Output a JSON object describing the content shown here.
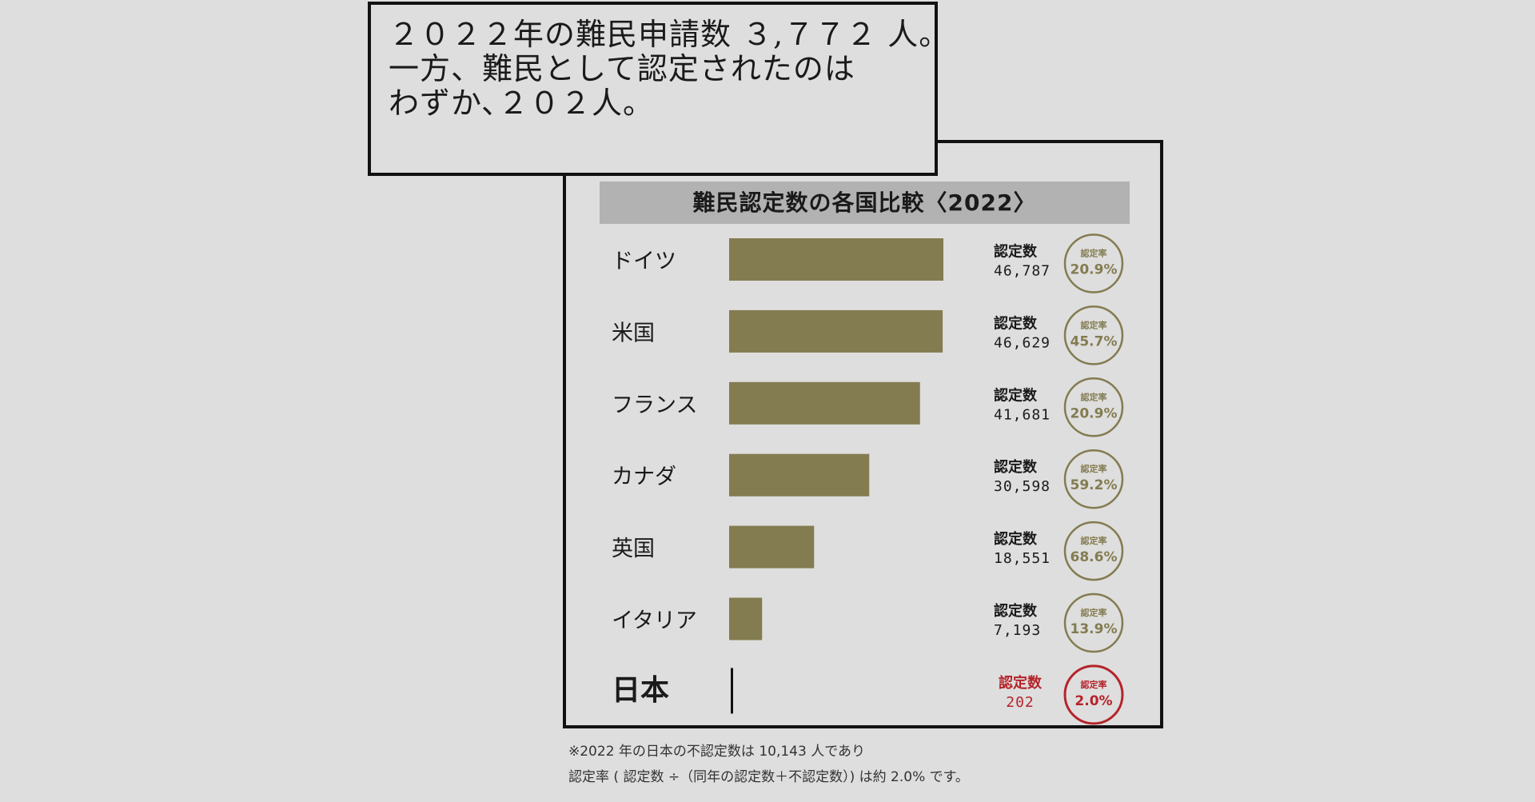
{
  "headline": {
    "line1": "２０２２年の難民申請数 ３,７７２ 人。",
    "line2": "一方、難民として認定されたのは",
    "line3": "わずか､２０２人。"
  },
  "chart_data": {
    "type": "bar",
    "title": "難民認定数の各国比較〈2022〉",
    "count_label": "認定数",
    "rate_label": "認定率",
    "categories": [
      "ドイツ",
      "米国",
      "フランス",
      "カナダ",
      "英国",
      "イタリア",
      "日本"
    ],
    "values": [
      46787,
      46629,
      41681,
      30598,
      18551,
      7193,
      202
    ],
    "value_labels": [
      "46,787",
      "46,629",
      "41,681",
      "30,598",
      "18,551",
      "7,193",
      "202"
    ],
    "rates": [
      "20.9%",
      "45.7%",
      "20.9%",
      "59.2%",
      "68.6%",
      "13.9%",
      "2.0%"
    ],
    "highlight_index": 6,
    "colors": {
      "bar": "#837c51",
      "highlight": "#b5242a",
      "circle": "#837c51"
    }
  },
  "footnote": {
    "line1": "※2022 年の日本の不認定数は 10,143 人であり",
    "line2": "認定率 ( 認定数 ÷（同年の認定数＋不認定数）) は約 2.0% です。"
  }
}
